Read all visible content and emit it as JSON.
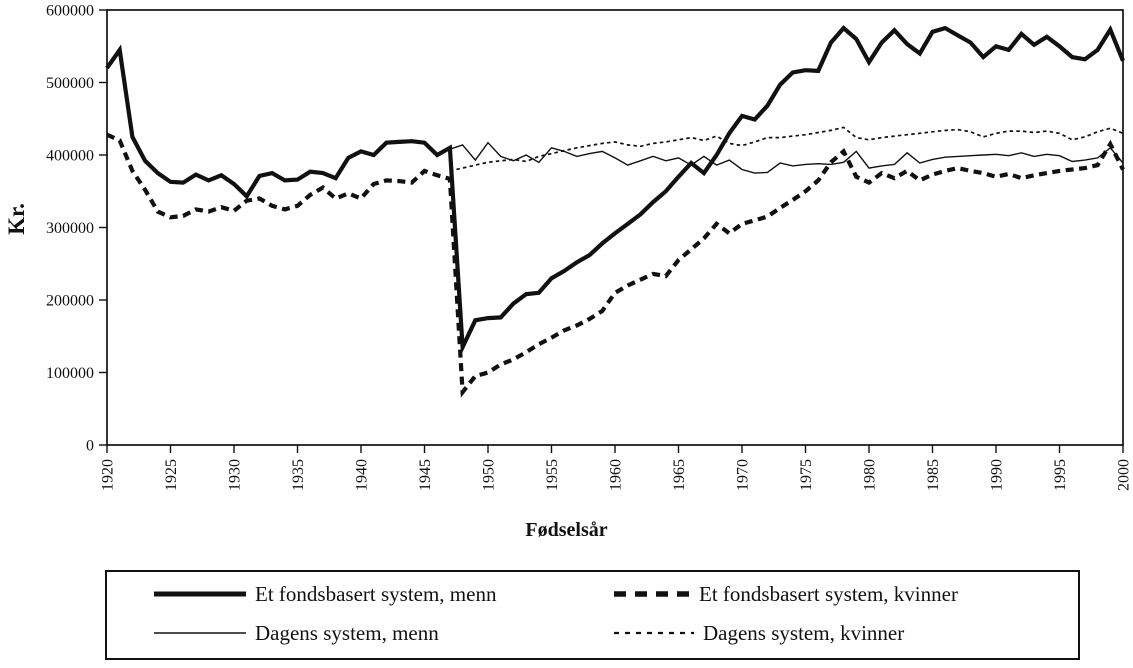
{
  "chart_data": {
    "type": "line",
    "title": "",
    "xlabel": "Fødselsår",
    "ylabel": "Kr.",
    "xlim": [
      1920,
      2000
    ],
    "ylim": [
      0,
      600000
    ],
    "grid": false,
    "legend_position": "bottom-box",
    "line_color": "#111111",
    "background_color": "#ffffff",
    "y_ticks": [
      0,
      100000,
      200000,
      300000,
      400000,
      500000,
      600000
    ],
    "y_tick_labels": [
      "0",
      "100000",
      "200000",
      "300000",
      "400000",
      "500000",
      "600000"
    ],
    "x_ticks": [
      1920,
      1925,
      1930,
      1935,
      1940,
      1945,
      1950,
      1955,
      1960,
      1965,
      1970,
      1975,
      1980,
      1985,
      1990,
      1995,
      2000
    ],
    "x": [
      1920,
      1921,
      1922,
      1923,
      1924,
      1925,
      1926,
      1927,
      1928,
      1929,
      1930,
      1931,
      1932,
      1933,
      1934,
      1935,
      1936,
      1937,
      1938,
      1939,
      1940,
      1941,
      1942,
      1943,
      1944,
      1945,
      1946,
      1947,
      1948,
      1949,
      1950,
      1951,
      1952,
      1953,
      1954,
      1955,
      1956,
      1957,
      1958,
      1959,
      1960,
      1961,
      1962,
      1963,
      1964,
      1965,
      1966,
      1967,
      1968,
      1969,
      1970,
      1971,
      1972,
      1973,
      1974,
      1975,
      1976,
      1977,
      1978,
      1979,
      1980,
      1981,
      1982,
      1983,
      1984,
      1985,
      1986,
      1987,
      1988,
      1989,
      1990,
      1991,
      1992,
      1993,
      1994,
      1995,
      1996,
      1997,
      1998,
      1999,
      2000
    ],
    "series": [
      {
        "name": "Et fondsbasert system, menn",
        "style": "thick-solid",
        "values": [
          520000,
          545000,
          425000,
          392000,
          375000,
          363000,
          362000,
          373000,
          365000,
          372000,
          360000,
          343000,
          371000,
          375000,
          365000,
          366000,
          377000,
          375000,
          368000,
          396000,
          405000,
          400000,
          417000,
          418000,
          419000,
          417000,
          400000,
          410000,
          135000,
          172000,
          175000,
          176000,
          195000,
          208000,
          210000,
          230000,
          240000,
          252000,
          262000,
          278000,
          292000,
          305000,
          318000,
          335000,
          350000,
          370000,
          389000,
          375000,
          400000,
          430000,
          454000,
          449000,
          468000,
          497000,
          514000,
          517000,
          516000,
          555000,
          575000,
          560000,
          528000,
          555000,
          572000,
          553000,
          540000,
          570000,
          575000,
          565000,
          555000,
          535000,
          550000,
          545000,
          567000,
          552000,
          563000,
          550000,
          535000,
          532000,
          545000,
          573000,
          530000
        ]
      },
      {
        "name": "Et fondsbasert system, kvinner",
        "style": "thick-dashed",
        "values": [
          428000,
          420000,
          378000,
          352000,
          322000,
          314000,
          316000,
          325000,
          322000,
          328000,
          323000,
          337000,
          340000,
          330000,
          325000,
          330000,
          345000,
          355000,
          340000,
          347000,
          340000,
          360000,
          365000,
          364000,
          362000,
          378000,
          372000,
          367000,
          73000,
          95000,
          100000,
          111000,
          118000,
          128000,
          139000,
          148000,
          158000,
          165000,
          174000,
          185000,
          210000,
          220000,
          228000,
          236000,
          233000,
          255000,
          270000,
          285000,
          305000,
          292000,
          305000,
          310000,
          315000,
          327000,
          338000,
          350000,
          365000,
          390000,
          405000,
          370000,
          362000,
          375000,
          368000,
          378000,
          365000,
          373000,
          378000,
          382000,
          378000,
          375000,
          370000,
          374000,
          368000,
          372000,
          375000,
          378000,
          380000,
          382000,
          386000,
          415000,
          380000
        ]
      },
      {
        "name": "Dagens system, menn",
        "style": "thin-solid",
        "values": [
          null,
          null,
          null,
          null,
          null,
          null,
          null,
          null,
          null,
          null,
          null,
          null,
          null,
          null,
          null,
          null,
          null,
          null,
          null,
          null,
          null,
          null,
          null,
          null,
          null,
          null,
          null,
          408000,
          414000,
          393000,
          417000,
          398000,
          392000,
          400000,
          390000,
          410000,
          405000,
          398000,
          402000,
          405000,
          396000,
          386000,
          392000,
          398000,
          392000,
          396000,
          386000,
          398000,
          386000,
          393000,
          380000,
          375000,
          376000,
          389000,
          385000,
          387000,
          388000,
          387000,
          390000,
          405000,
          382000,
          385000,
          387000,
          403000,
          389000,
          394000,
          397000,
          398000,
          399000,
          400000,
          401000,
          399000,
          403000,
          398000,
          401000,
          399000,
          391000,
          393000,
          396000,
          410000,
          389000
        ]
      },
      {
        "name": "Dagens system, kvinner",
        "style": "thin-dotted",
        "values": [
          null,
          null,
          null,
          null,
          null,
          null,
          null,
          null,
          null,
          null,
          null,
          null,
          null,
          null,
          null,
          null,
          null,
          null,
          null,
          null,
          null,
          null,
          null,
          null,
          null,
          null,
          null,
          378000,
          382000,
          386000,
          390000,
          392000,
          394000,
          391000,
          398000,
          402000,
          406000,
          410000,
          413000,
          416000,
          418000,
          414000,
          412000,
          416000,
          418000,
          421000,
          424000,
          420000,
          426000,
          416000,
          413000,
          418000,
          424000,
          424000,
          426000,
          428000,
          431000,
          434000,
          438000,
          424000,
          421000,
          424000,
          426000,
          428000,
          430000,
          432000,
          434000,
          435000,
          432000,
          425000,
          430000,
          433000,
          433000,
          431000,
          433000,
          430000,
          421000,
          425000,
          432000,
          437000,
          430000
        ]
      }
    ]
  }
}
